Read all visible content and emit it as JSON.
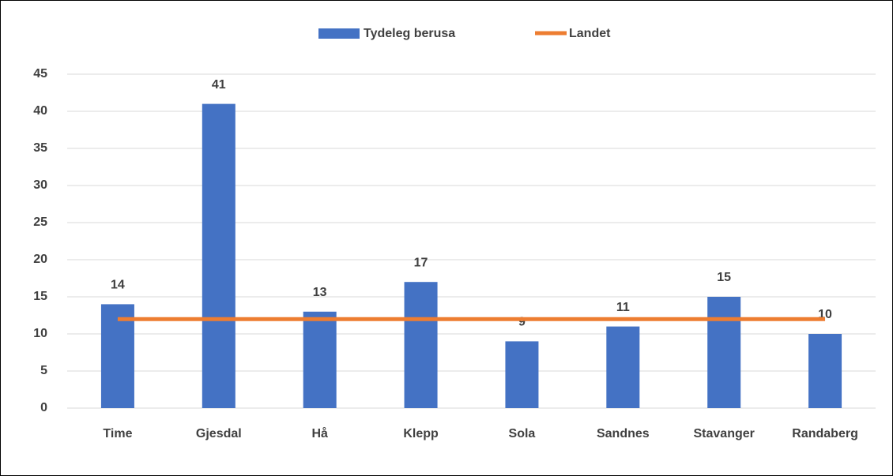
{
  "chart_data": {
    "type": "bar",
    "categories": [
      "Time",
      "Gjesdal",
      "Hå",
      "Klepp",
      "Sola",
      "Sandnes",
      "Stavanger",
      "Randaberg"
    ],
    "series": [
      {
        "name": "Tydeleg berusa",
        "type": "bar",
        "color": "#4472c4",
        "values": [
          14,
          41,
          13,
          17,
          9,
          11,
          15,
          10
        ]
      },
      {
        "name": "Landet",
        "type": "line",
        "color": "#ed7d31",
        "values": [
          12,
          12,
          12,
          12,
          12,
          12,
          12,
          12
        ]
      }
    ],
    "ylim": [
      0,
      45
    ],
    "yticks": [
      0,
      5,
      10,
      15,
      20,
      25,
      30,
      35,
      40,
      45
    ],
    "grid": true,
    "legend": "top",
    "data_labels": [
      true,
      false
    ]
  }
}
